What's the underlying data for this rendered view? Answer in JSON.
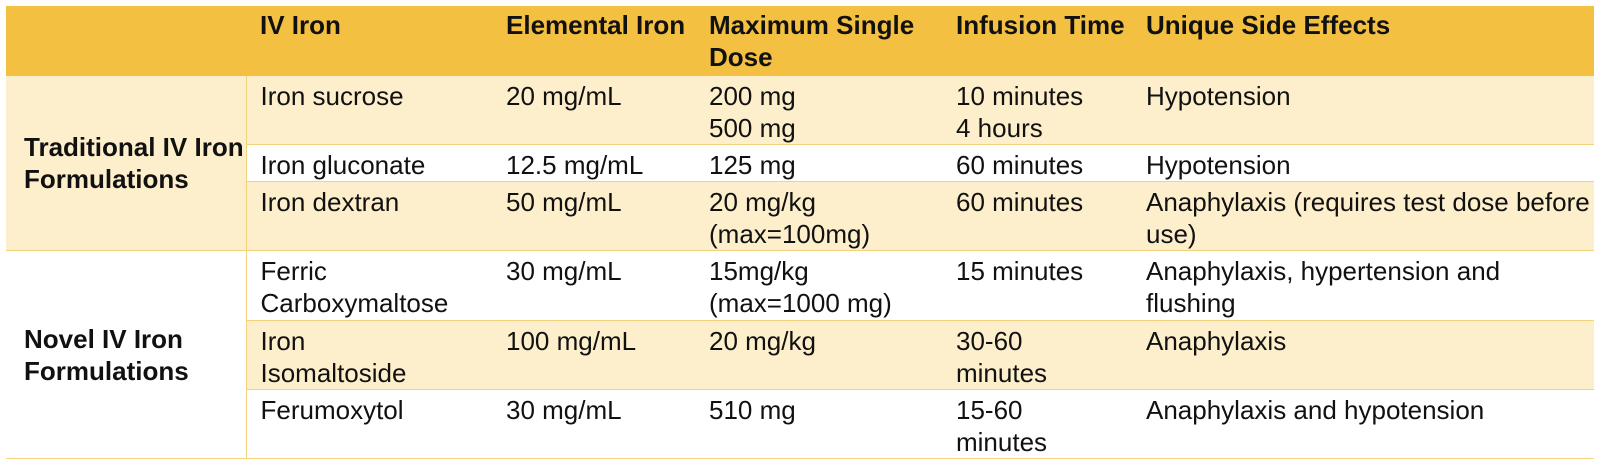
{
  "colors": {
    "header_bg": "#F4C042",
    "band_bg": "#FDEFCB",
    "line": "#F2D27A"
  },
  "table": {
    "headers": [
      "",
      "IV Iron",
      "Elemental Iron",
      "Maximum Single Dose",
      "Infusion Time",
      "Unique Side Effects"
    ],
    "groups": [
      {
        "label": "Traditional IV Iron Formulations",
        "rows": [
          {
            "iv_iron": "Iron sucrose",
            "elemental_iron": "20 mg/mL",
            "max_dose": [
              "200 mg",
              "500 mg"
            ],
            "infusion_time": [
              "10 minutes",
              "4 hours"
            ],
            "side_effects": "Hypotension"
          },
          {
            "iv_iron": "Iron gluconate",
            "elemental_iron": "12.5 mg/mL",
            "max_dose": [
              "125 mg"
            ],
            "infusion_time": [
              "60 minutes"
            ],
            "side_effects": "Hypotension"
          },
          {
            "iv_iron": "Iron dextran",
            "elemental_iron": "50 mg/mL",
            "max_dose": [
              "20 mg/kg",
              "(max=100mg)"
            ],
            "infusion_time": [
              "60 minutes"
            ],
            "side_effects": "Anaphylaxis (requires test dose before use)"
          }
        ]
      },
      {
        "label": "Novel IV Iron Formulations",
        "rows": [
          {
            "iv_iron": "Ferric Carboxymaltose",
            "elemental_iron": "30 mg/mL",
            "max_dose": [
              "15mg/kg",
              "(max=1000 mg)"
            ],
            "infusion_time": [
              "15 minutes"
            ],
            "side_effects": "Anaphylaxis, hypertension and flushing"
          },
          {
            "iv_iron": "Iron Isomaltoside",
            "elemental_iron": "100 mg/mL",
            "max_dose": [
              "20 mg/kg"
            ],
            "infusion_time": [
              "30-60 minutes"
            ],
            "side_effects": "Anaphylaxis"
          },
          {
            "iv_iron": "Ferumoxytol",
            "elemental_iron": "30 mg/mL",
            "max_dose": [
              "510 mg"
            ],
            "infusion_time": [
              "15-60 minutes"
            ],
            "side_effects": "Anaphylaxis and hypotension"
          }
        ]
      }
    ]
  }
}
